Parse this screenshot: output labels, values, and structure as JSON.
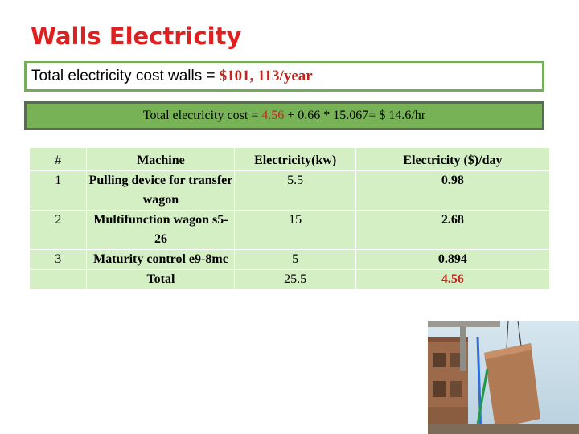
{
  "title": "Walls Electricity",
  "total_walls": {
    "label": "Total electricity cost walls =",
    "value": "$101, 113/year"
  },
  "formula": {
    "prefix": "Total electricity cost = ",
    "highlight": "4.56",
    "suffix": " + 0.66 * 15.067= $ 14.6/hr"
  },
  "table": {
    "headers": [
      "#",
      "Machine",
      "Electricity(kw)",
      "Electricity ($)/day"
    ],
    "rows": [
      {
        "num": "1",
        "machine": "Pulling device for transfer wagon",
        "kw": "5.5",
        "cost": "0.98"
      },
      {
        "num": "2",
        "machine": "Multifunction wagon s5-26",
        "kw": "15",
        "cost": "2.68"
      },
      {
        "num": "3",
        "machine": "Maturity control e9-8mc",
        "kw": "5",
        "cost": "0.894"
      }
    ],
    "total": {
      "label": "Total",
      "kw": "25.5",
      "cost": "4.56"
    }
  },
  "photo": {
    "icon": "construction-crane-photo",
    "colors": {
      "sky": "#c9dde9",
      "building": "#a8724f",
      "cable": "#2e6fd6"
    }
  }
}
